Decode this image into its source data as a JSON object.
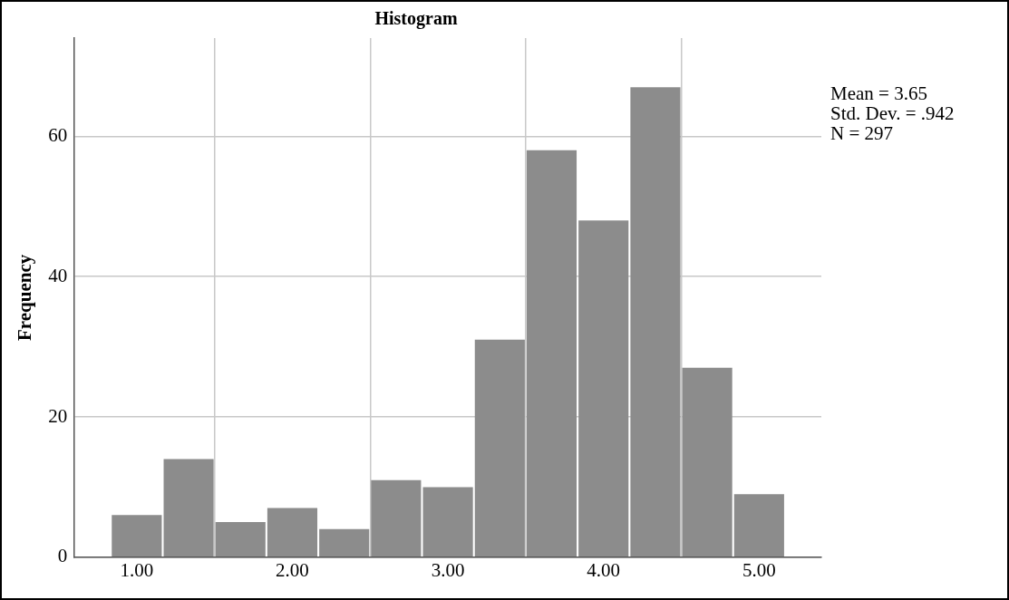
{
  "chart_data": {
    "type": "histogram",
    "title": "Histogram",
    "ylabel": "Frequency",
    "bins": [
      0.833,
      1.167,
      1.5,
      1.833,
      2.167,
      2.5,
      2.833,
      3.167,
      3.5,
      3.833,
      4.167,
      4.5,
      4.833,
      5.167
    ],
    "values": [
      6,
      14,
      5,
      7,
      4,
      11,
      10,
      31,
      58,
      48,
      67,
      27,
      9
    ],
    "color": "#8c8c8c",
    "xlim": [
      0.6,
      5.4
    ],
    "xticks": [
      {
        "value": 1,
        "label": "1.00"
      },
      {
        "value": 2,
        "label": "2.00"
      },
      {
        "value": 3,
        "label": "3.00"
      },
      {
        "value": 4,
        "label": "4.00"
      },
      {
        "value": 5,
        "label": "5.00"
      }
    ],
    "ylim": [
      0,
      74
    ],
    "yticks": [
      0,
      20,
      40,
      60
    ],
    "grid": true,
    "legend": false,
    "annotations": [
      "Mean = 3.65",
      "Std. Dev. = .942",
      "N = 297"
    ]
  }
}
